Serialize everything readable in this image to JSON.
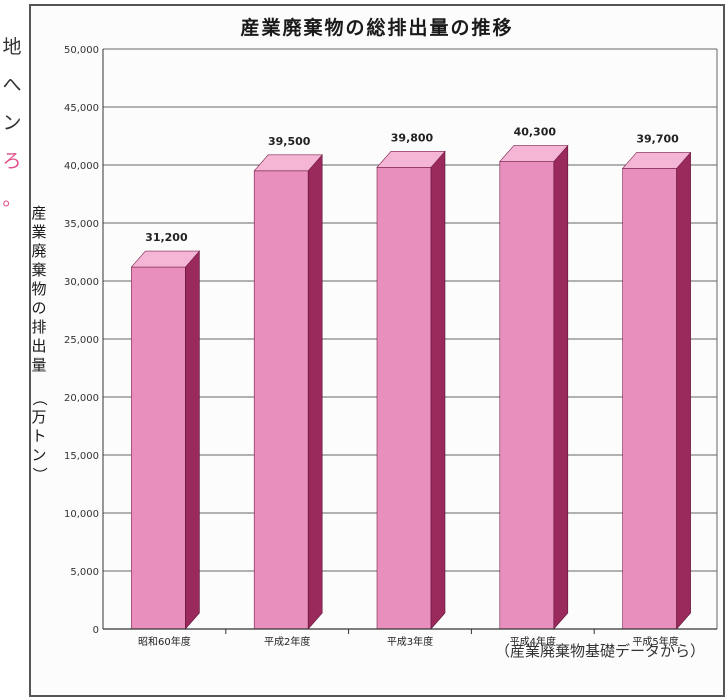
{
  "left_fragment": [
    "地",
    "へ",
    "ン",
    "ろ",
    "。"
  ],
  "chart_data": {
    "type": "bar",
    "title": "産業廃棄物の総排出量の推移",
    "ylabel_chars": [
      "産",
      "業",
      "廃",
      "棄",
      "物",
      "の",
      "排",
      "出",
      "量"
    ],
    "yunit_chars": [
      "（",
      "万",
      "ト",
      "ン",
      "）"
    ],
    "categories": [
      "昭和60年度",
      "平成2年度",
      "平成3年度",
      "平成4年度",
      "平成5年度"
    ],
    "values": [
      31200,
      39500,
      39800,
      40300,
      39700
    ],
    "value_labels": [
      "31,200",
      "39,500",
      "39,800",
      "40,300",
      "39,700"
    ],
    "ylim": [
      0,
      50000
    ],
    "yticks": [
      0,
      5000,
      10000,
      15000,
      20000,
      25000,
      30000,
      35000,
      40000,
      45000,
      50000
    ],
    "ytick_labels": [
      "0",
      "5,000",
      "10,000",
      "15,000",
      "20,000",
      "25,000",
      "30,000",
      "35,000",
      "40,000",
      "45,000",
      "50,000"
    ],
    "grid": true,
    "legend": "none",
    "colors": {
      "bar_front": "#e88fbd",
      "bar_top": "#f4b6d4",
      "bar_side": "#9a2a5c",
      "grid": "#666666"
    }
  },
  "source_note": "（産業廃棄物基礎データから）"
}
